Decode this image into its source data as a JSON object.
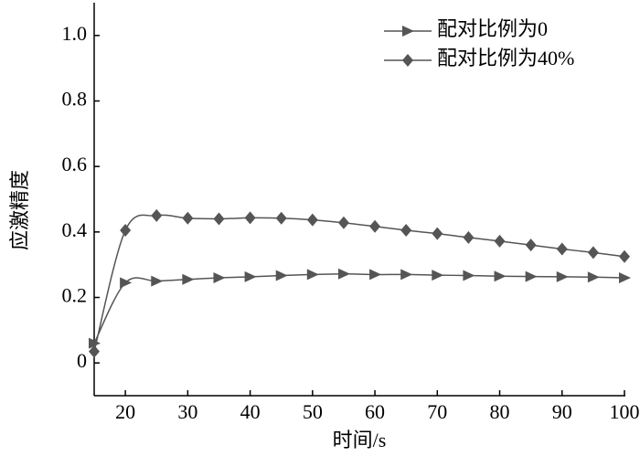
{
  "chart_data": {
    "type": "line",
    "x_label": "时间/s",
    "y_label": "应激精度",
    "x": [
      15,
      20,
      25,
      30,
      35,
      40,
      45,
      50,
      55,
      60,
      65,
      70,
      75,
      80,
      85,
      90,
      95,
      100
    ],
    "series": [
      {
        "name": "配对比例为0",
        "color": "#555555",
        "marker": "triangle",
        "values": [
          0.06,
          0.245,
          0.25,
          0.255,
          0.26,
          0.263,
          0.267,
          0.27,
          0.272,
          0.27,
          0.27,
          0.268,
          0.267,
          0.265,
          0.264,
          0.263,
          0.262,
          0.26
        ]
      },
      {
        "name": "配对比例为40%",
        "color": "#555555",
        "marker": "diamond",
        "values": [
          0.035,
          0.405,
          0.45,
          0.442,
          0.44,
          0.443,
          0.442,
          0.437,
          0.428,
          0.417,
          0.405,
          0.395,
          0.383,
          0.372,
          0.36,
          0.348,
          0.337,
          0.325
        ]
      }
    ],
    "xlim": [
      15,
      100
    ],
    "xticks": [
      20,
      30,
      40,
      50,
      60,
      70,
      80,
      90,
      100
    ],
    "ylim": [
      -0.1,
      1.1
    ],
    "yticks": [
      0,
      0.2,
      0.4,
      0.6,
      0.8,
      {
        "value": 1,
        "label": "1.0"
      }
    ],
    "legend": "top-right"
  }
}
